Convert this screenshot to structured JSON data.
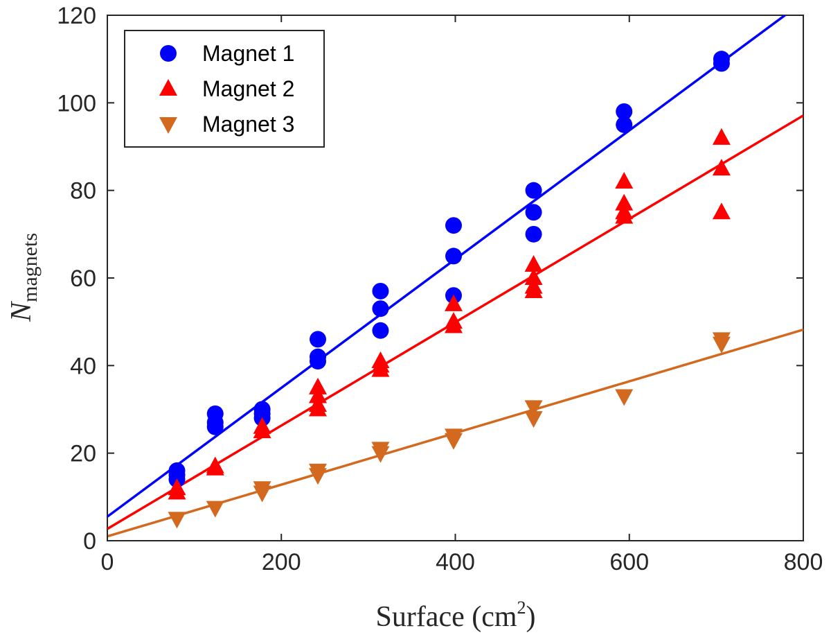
{
  "chart_data": {
    "type": "scatter",
    "title": "",
    "xlabel": {
      "text": "Surface (cm",
      "superscript": "2",
      "close": ")"
    },
    "ylabel": {
      "symbol": "N",
      "subscript": "magnets"
    },
    "xlim": [
      0,
      800
    ],
    "ylim": [
      0,
      120
    ],
    "xticks": [
      0,
      200,
      400,
      600,
      800
    ],
    "yticks": [
      0,
      20,
      40,
      60,
      80,
      100,
      120
    ],
    "grid": false,
    "legend_position": "top-left",
    "series": [
      {
        "name": "Magnet 1",
        "marker": "circle",
        "color": "#0000ff",
        "fit": {
          "intercept": 5.5,
          "slope": 0.147
        },
        "points": [
          [
            80,
            14
          ],
          [
            80,
            15
          ],
          [
            80,
            16
          ],
          [
            124,
            26
          ],
          [
            124,
            27
          ],
          [
            124,
            29
          ],
          [
            178,
            28
          ],
          [
            178,
            29
          ],
          [
            178,
            30
          ],
          [
            242,
            41
          ],
          [
            242,
            42
          ],
          [
            242,
            46
          ],
          [
            314,
            48
          ],
          [
            314,
            53
          ],
          [
            314,
            57
          ],
          [
            398,
            56
          ],
          [
            398,
            65
          ],
          [
            398,
            72
          ],
          [
            490,
            70
          ],
          [
            490,
            75
          ],
          [
            490,
            80
          ],
          [
            594,
            95
          ],
          [
            594,
            98
          ],
          [
            706,
            109
          ],
          [
            706,
            110
          ]
        ]
      },
      {
        "name": "Magnet 2",
        "marker": "triangle-up",
        "color": "#ff0000",
        "fit": {
          "intercept": 2.7,
          "slope": 0.118
        },
        "points": [
          [
            80,
            12
          ],
          [
            80,
            11
          ],
          [
            124,
            17
          ],
          [
            124,
            16.5
          ],
          [
            178,
            26
          ],
          [
            178,
            25
          ],
          [
            242,
            30
          ],
          [
            242,
            31
          ],
          [
            242,
            33
          ],
          [
            242,
            35
          ],
          [
            314,
            39
          ],
          [
            314,
            40
          ],
          [
            314,
            41
          ],
          [
            398,
            49
          ],
          [
            398,
            50
          ],
          [
            398,
            54
          ],
          [
            490,
            57
          ],
          [
            490,
            58
          ],
          [
            490,
            60
          ],
          [
            490,
            63
          ],
          [
            594,
            74
          ],
          [
            594,
            75
          ],
          [
            594,
            77
          ],
          [
            594,
            82
          ],
          [
            706,
            75
          ],
          [
            706,
            85
          ],
          [
            706,
            92
          ]
        ]
      },
      {
        "name": "Magnet 3",
        "marker": "triangle-down",
        "color": "#d2691e",
        "fit": {
          "intercept": 1.0,
          "slope": 0.059
        },
        "points": [
          [
            80,
            5
          ],
          [
            124,
            7.5
          ],
          [
            178,
            11
          ],
          [
            178,
            12
          ],
          [
            242,
            15
          ],
          [
            242,
            16
          ],
          [
            314,
            20
          ],
          [
            314,
            21
          ],
          [
            398,
            23
          ],
          [
            398,
            24
          ],
          [
            490,
            28
          ],
          [
            490,
            30.5
          ],
          [
            594,
            33
          ],
          [
            706,
            45
          ],
          [
            706,
            46
          ]
        ]
      }
    ]
  }
}
